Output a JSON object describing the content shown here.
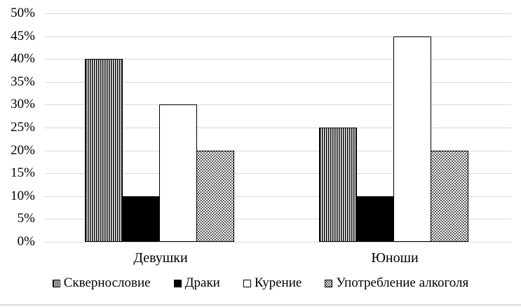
{
  "chart_data": {
    "type": "bar",
    "title": "",
    "xlabel": "",
    "ylabel": "",
    "categories": [
      "Девушки",
      "Юноши"
    ],
    "series": [
      {
        "name": "Сквернословие",
        "pattern": "vertical-stripes",
        "values": [
          40,
          25
        ]
      },
      {
        "name": "Драки",
        "pattern": "solid-black",
        "values": [
          10,
          10
        ]
      },
      {
        "name": "Курение",
        "pattern": "white-outline",
        "values": [
          30,
          45
        ]
      },
      {
        "name": "Употребление алкоголя",
        "pattern": "dot-grid",
        "values": [
          20,
          20
        ]
      }
    ],
    "ylim": [
      0,
      50
    ],
    "ytick_step": 5,
    "ytick_labels": [
      "0%",
      "5%",
      "10%",
      "15%",
      "20%",
      "25%",
      "30%",
      "35%",
      "40%",
      "45%",
      "50%"
    ],
    "grid": "horizontal",
    "legend_position": "bottom",
    "colors": {
      "background": "#ffffff",
      "text": "#000000",
      "gridline": "#d9d9d9",
      "bar_outline": "#000000"
    }
  }
}
